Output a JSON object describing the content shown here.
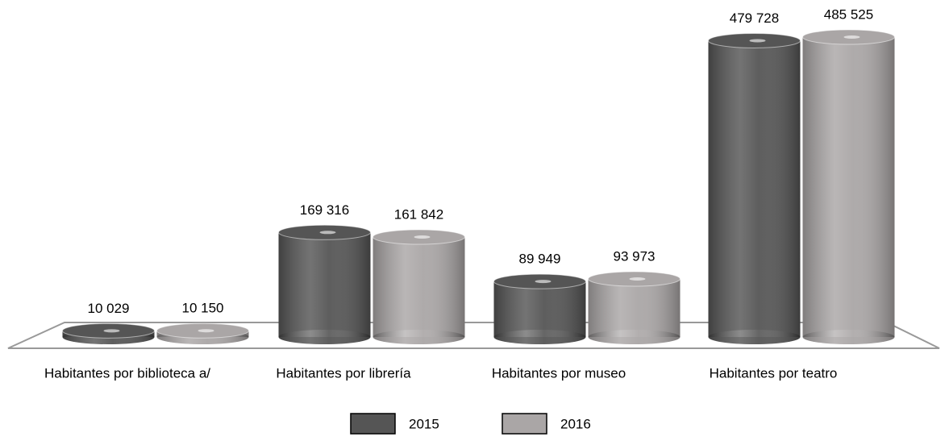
{
  "chart_data": {
    "type": "bar",
    "categories": [
      "Habitantes por biblioteca a/",
      "Habitantes por librería",
      "Habitantes por museo",
      "Habitantes por teatro"
    ],
    "series": [
      {
        "name": "2015",
        "color": "#555555",
        "values": [
          10029,
          169316,
          89949,
          479728
        ],
        "value_labels": [
          "10 029",
          "169 316",
          "89 949",
          "479 728"
        ]
      },
      {
        "name": "2016",
        "color": "#aaa6a6",
        "values": [
          10150,
          161842,
          93973,
          485525
        ],
        "value_labels": [
          "10 150",
          "161 842",
          "93 973",
          "485 525"
        ]
      }
    ]
  }
}
